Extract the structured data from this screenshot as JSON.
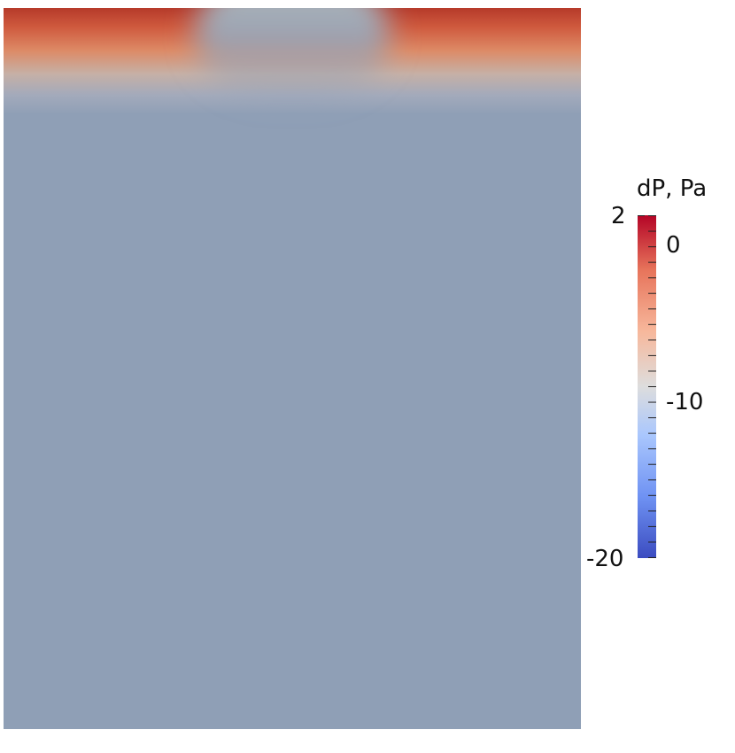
{
  "scalar_field": {
    "name": "dP",
    "unit": "Pa",
    "background_color": "#8f9fb6"
  },
  "colorbar": {
    "title": "dP, Pa",
    "range": [
      -20,
      2
    ],
    "colormap": "cool-to-warm",
    "colormap_stops": [
      "#3b4cc0",
      "#6f92f3",
      "#aac7fd",
      "#dddddd",
      "#f7b89c",
      "#e7745b",
      "#b40426"
    ],
    "major_labels": {
      "max": "2",
      "zero": "0",
      "mid": "-10",
      "min": "-20"
    },
    "label_values": [
      2,
      0,
      -10,
      -20
    ],
    "minor_tick_count": 22
  }
}
